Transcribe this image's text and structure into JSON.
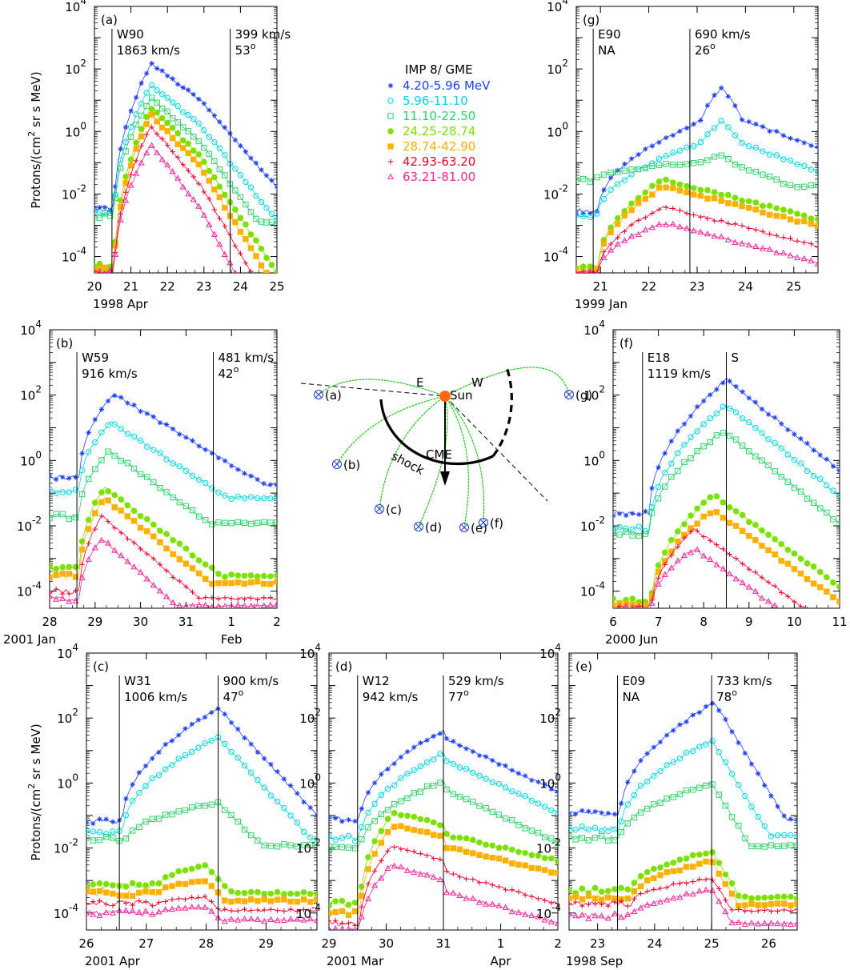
{
  "chart_data": {
    "type": "scatter",
    "y_axis": {
      "label_prefix": "Protons/(cm",
      "label_sup": "2",
      "label_suffix": " sr s MeV)",
      "scale": "log",
      "ylim": [
        3e-05,
        10000
      ],
      "tick_exponents": [
        "4",
        "2",
        "0",
        "-2",
        "-4"
      ]
    },
    "legend": {
      "title": "IMP 8/ GME",
      "placement": "top-center",
      "entries": [
        {
          "label": "4.20-5.96 MeV",
          "color": "#1f3fff",
          "marker": "asterisk"
        },
        {
          "label": "5.96-11.10",
          "color": "#00d4e8",
          "marker": "circle-open"
        },
        {
          "label": "11.10-22.50",
          "color": "#2fd06a",
          "marker": "square-open"
        },
        {
          "label": "24.25-28.74",
          "color": "#7ce000",
          "marker": "circle-filled"
        },
        {
          "label": "28.74-42.90",
          "color": "#ffb000",
          "marker": "square-filled"
        },
        {
          "label": "42.93-63.20",
          "color": "#f0002a",
          "marker": "plus"
        },
        {
          "label": "63.21-81.00",
          "color": "#f0269c",
          "marker": "triangle-open"
        }
      ]
    },
    "panels": [
      {
        "id": "a",
        "tag": "(a)",
        "xmin": 20,
        "xmax": 25,
        "xticks": [
          "20",
          "21",
          "22",
          "23",
          "24",
          "25"
        ],
        "period": "1998 Apr",
        "extra_month": null,
        "markers": [
          {
            "x": 20.48,
            "l1": "W90",
            "l2": "1863 km/s",
            "sup": false
          },
          {
            "x": 23.72,
            "l1": "399 km/s",
            "l2": "53",
            "sup": true
          }
        ],
        "profiles": [
          {
            "bg": 0.0035,
            "peak": 150,
            "onset": 20.55,
            "tp": 21.55,
            "tdecay": 1.15,
            "late_knee": 22.9,
            "late_decay": 2.2
          },
          {
            "bg": 0.0025,
            "peak": 30,
            "onset": 20.55,
            "tp": 21.55,
            "tdecay": 1.05,
            "late_knee": 22.9,
            "late_decay": 2.0
          },
          {
            "bg": 0.002,
            "peak": 12,
            "onset": 20.55,
            "tp": 21.55,
            "tdecay": 0.95,
            "late_knee": 22.9,
            "late_decay": 1.8
          },
          {
            "bg": 5e-05,
            "peak": 6,
            "onset": 20.55,
            "tp": 21.55,
            "tdecay": 0.85,
            "late_knee": 22.9,
            "late_decay": 1.7
          },
          {
            "bg": 4e-05,
            "peak": 3.5,
            "onset": 20.55,
            "tp": 21.55,
            "tdecay": 0.8,
            "late_knee": 22.9,
            "late_decay": 1.6
          },
          {
            "bg": 3e-05,
            "peak": 1.5,
            "onset": 20.55,
            "tp": 21.55,
            "tdecay": 0.72,
            "late_knee": 22.9,
            "late_decay": 1.6
          },
          {
            "bg": 3e-05,
            "peak": 0.4,
            "onset": 20.55,
            "tp": 21.55,
            "tdecay": 0.65,
            "late_knee": 22.9,
            "late_decay": 1.6
          }
        ]
      },
      {
        "id": "g",
        "tag": "(g)",
        "xmin": 20.5,
        "xmax": 25.5,
        "xticks": [
          "21",
          "22",
          "23",
          "24",
          "25"
        ],
        "period": "1999 Jan",
        "extra_month": null,
        "markers": [
          {
            "x": 20.85,
            "l1": "E90",
            "l2": "NA",
            "sup": false
          },
          {
            "x": 22.85,
            "l1": "690 km/s",
            "l2": "26",
            "sup": true
          }
        ],
        "profiles": [
          {
            "bg": 0.003,
            "peak": 4,
            "onset": 20.95,
            "tp": 23.5,
            "tdecay": 1.8,
            "bump": 6
          },
          {
            "bg": 0.002,
            "peak": 0.7,
            "onset": 20.95,
            "tp": 23.5,
            "tdecay": 1.8,
            "bump": 3
          },
          {
            "bg": 0.03,
            "peak": 0.12,
            "onset": 20.95,
            "tp": 23.5,
            "tdecay": 1.8,
            "bump": 1.5
          },
          {
            "bg": 5e-05,
            "peak": 0.03,
            "onset": 20.95,
            "tp": 22.3,
            "tdecay": 2.5,
            "bump": 1
          },
          {
            "bg": 4e-05,
            "peak": 0.018,
            "onset": 20.95,
            "tp": 22.3,
            "tdecay": 2.5,
            "bump": 1
          },
          {
            "bg": 3e-05,
            "peak": 0.004,
            "onset": 20.95,
            "tp": 22.3,
            "tdecay": 2.5,
            "bump": 1
          },
          {
            "bg": 3e-05,
            "peak": 0.0012,
            "onset": 20.95,
            "tp": 22.3,
            "tdecay": 2.5,
            "bump": 1
          }
        ]
      },
      {
        "id": "b",
        "tag": "(b)",
        "xmin": 28,
        "xmax": 33,
        "xticks": [
          "28",
          "29",
          "30",
          "31",
          "1",
          "2"
        ],
        "period": "2001 Jan",
        "extra_month": {
          "label": "Feb",
          "x": 32
        },
        "markers": [
          {
            "x": 28.6,
            "l1": "W59",
            "l2": "916 km/s",
            "sup": false
          },
          {
            "x": 31.6,
            "l1": "481 km/s",
            "l2": "42",
            "sup": true
          }
        ],
        "profiles": [
          {
            "bg": 0.3,
            "peak": 110,
            "onset": 28.65,
            "tp": 29.4,
            "tdecay": 1.2
          },
          {
            "bg": 0.12,
            "peak": 15,
            "onset": 28.65,
            "tp": 29.35,
            "tdecay": 1.1
          },
          {
            "bg": 0.02,
            "peak": 2,
            "onset": 28.65,
            "tp": 29.3,
            "tdecay": 1.0
          },
          {
            "bg": 0.0005,
            "peak": 0.15,
            "onset": 28.65,
            "tp": 29.2,
            "tdecay": 0.95
          },
          {
            "bg": 0.0003,
            "peak": 0.07,
            "onset": 28.65,
            "tp": 29.2,
            "tdecay": 0.9
          },
          {
            "bg": 0.0001,
            "peak": 0.02,
            "onset": 28.65,
            "tp": 29.15,
            "tdecay": 0.85
          },
          {
            "bg": 6e-05,
            "peak": 0.004,
            "onset": 28.65,
            "tp": 29.15,
            "tdecay": 0.8
          }
        ]
      },
      {
        "id": "f",
        "tag": "(f)",
        "xmin": 6,
        "xmax": 11,
        "xticks": [
          "6",
          "7",
          "8",
          "9",
          "10",
          "11"
        ],
        "period": "2000 Jun",
        "extra_month": null,
        "markers": [
          {
            "x": 6.65,
            "l1": "E18",
            "l2": "1119 km/s",
            "sup": false
          },
          {
            "x": 8.5,
            "l1": "S",
            "l2": "",
            "sup": false
          }
        ],
        "profiles": [
          {
            "bg": 0.025,
            "peak": 300,
            "onset": 6.8,
            "tp": 8.5,
            "tdecay": 0.9
          },
          {
            "bg": 0.008,
            "peak": 50,
            "onset": 6.8,
            "tp": 8.5,
            "tdecay": 0.9
          },
          {
            "bg": 0.006,
            "peak": 8,
            "onset": 6.8,
            "tp": 8.45,
            "tdecay": 0.9
          },
          {
            "bg": 5e-05,
            "peak": 0.09,
            "onset": 6.85,
            "tp": 8.2,
            "tdecay": 1.0
          },
          {
            "bg": 4e-05,
            "peak": 0.03,
            "onset": 6.85,
            "tp": 8.2,
            "tdecay": 1.0
          },
          {
            "bg": 3e-05,
            "peak": 0.008,
            "onset": 6.85,
            "tp": 7.8,
            "tdecay": 1.0
          },
          {
            "bg": 3e-05,
            "peak": 0.002,
            "onset": 6.85,
            "tp": 7.8,
            "tdecay": 1.0
          }
        ]
      },
      {
        "id": "c",
        "tag": "(c)",
        "xmin": 26,
        "xmax": 29.85,
        "xticks": [
          "26",
          "27",
          "28",
          "29"
        ],
        "period": "2001 Apr",
        "extra_month": null,
        "markers": [
          {
            "x": 26.55,
            "l1": "W31",
            "l2": "1006 km/s",
            "sup": false
          },
          {
            "x": 28.2,
            "l1": "900 km/s",
            "l2": "47",
            "sup": true
          }
        ],
        "profiles": [
          {
            "bg": 0.07,
            "peak": 200,
            "onset": 26.6,
            "tp": 28.2,
            "tdecay": 0.5
          },
          {
            "bg": 0.03,
            "peak": 25,
            "onset": 26.6,
            "tp": 28.2,
            "tdecay": 0.5
          },
          {
            "bg": 0.02,
            "peak": 0.25,
            "onset": 26.7,
            "tp": 28.2,
            "tdecay": 0.55
          },
          {
            "bg": 0.0007,
            "peak": 0.003,
            "onset": 27.2,
            "tp": 28.0,
            "tdecay": 0.5
          },
          {
            "bg": 0.0004,
            "peak": 0.001,
            "onset": 27.2,
            "tp": 28.0,
            "tdecay": 0.5
          },
          {
            "bg": 0.0002,
            "peak": 0.0003,
            "onset": 27.2,
            "tp": 28.0,
            "tdecay": 0.6
          },
          {
            "bg": 0.0001,
            "peak": 0.00015,
            "onset": 27.2,
            "tp": 28.0,
            "tdecay": 0.6
          }
        ]
      },
      {
        "id": "d",
        "tag": "(d)",
        "xmin": 29,
        "xmax": 33,
        "xticks": [
          "29",
          "30",
          "31",
          "1",
          "2"
        ],
        "period": "2001 Mar",
        "extra_month": {
          "label": "Apr",
          "x": 32
        },
        "markers": [
          {
            "x": 29.5,
            "l1": "W12",
            "l2": "942 km/s",
            "sup": false
          },
          {
            "x": 31.0,
            "l1": "529 km/s",
            "l2": "77",
            "sup": true
          }
        ],
        "profiles": [
          {
            "bg": 0.08,
            "peak": 40,
            "onset": 29.55,
            "tp": 31.0,
            "tdecay": 1.2,
            "step": 0.2
          },
          {
            "bg": 0.02,
            "peak": 8,
            "onset": 29.55,
            "tp": 31.0,
            "tdecay": 1.2,
            "step": 0.15
          },
          {
            "bg": 0.01,
            "peak": 1.2,
            "onset": 29.55,
            "tp": 31.0,
            "tdecay": 1.2,
            "step": 0.25
          },
          {
            "bg": 0.0002,
            "peak": 0.12,
            "onset": 29.55,
            "tp": 30.1,
            "tdecay": 2.5,
            "step": 0.3
          },
          {
            "bg": 0.0001,
            "peak": 0.05,
            "onset": 29.55,
            "tp": 30.1,
            "tdecay": 2.5,
            "step": 0.3
          },
          {
            "bg": 5e-05,
            "peak": 0.012,
            "onset": 29.55,
            "tp": 30.1,
            "tdecay": 2.0,
            "step": 0.35
          },
          {
            "bg": 3e-05,
            "peak": 0.003,
            "onset": 29.55,
            "tp": 30.1,
            "tdecay": 2.0,
            "step": 0.35
          }
        ]
      },
      {
        "id": "e",
        "tag": "(e)",
        "xmin": 22.5,
        "xmax": 26.5,
        "xticks": [
          "23",
          "24",
          "25",
          "26"
        ],
        "period": "1998 Sep",
        "extra_month": null,
        "markers": [
          {
            "x": 23.35,
            "l1": "E09",
            "l2": "NA",
            "sup": false
          },
          {
            "x": 25.0,
            "l1": "733 km/s",
            "l2": "78",
            "sup": true
          }
        ],
        "profiles": [
          {
            "bg": 0.12,
            "peak": 300,
            "onset": 23.4,
            "tp": 25.05,
            "tdecay": 0.35
          },
          {
            "bg": 0.04,
            "peak": 20,
            "onset": 23.4,
            "tp": 25.0,
            "tdecay": 0.35
          },
          {
            "bg": 0.02,
            "peak": 1,
            "onset": 23.4,
            "tp": 25.0,
            "tdecay": 0.35
          },
          {
            "bg": 0.0005,
            "peak": 0.008,
            "onset": 23.6,
            "tp": 25.0,
            "tdecay": 0.35
          },
          {
            "bg": 0.0003,
            "peak": 0.004,
            "onset": 23.6,
            "tp": 25.0,
            "tdecay": 0.35
          },
          {
            "bg": 0.0002,
            "peak": 0.0012,
            "onset": 23.6,
            "tp": 25.0,
            "tdecay": 0.35
          },
          {
            "bg": 8e-05,
            "peak": 0.0005,
            "onset": 23.6,
            "tp": 25.0,
            "tdecay": 0.35
          }
        ]
      }
    ],
    "schematic": {
      "sun_label": "Sun",
      "east_label": "E",
      "west_label": "W",
      "cme_label": "CME",
      "shock_label": "shock",
      "observers": [
        "(a)",
        "(b)",
        "(c)",
        "(d)",
        "(e)",
        "(f)",
        "(g)"
      ]
    }
  }
}
